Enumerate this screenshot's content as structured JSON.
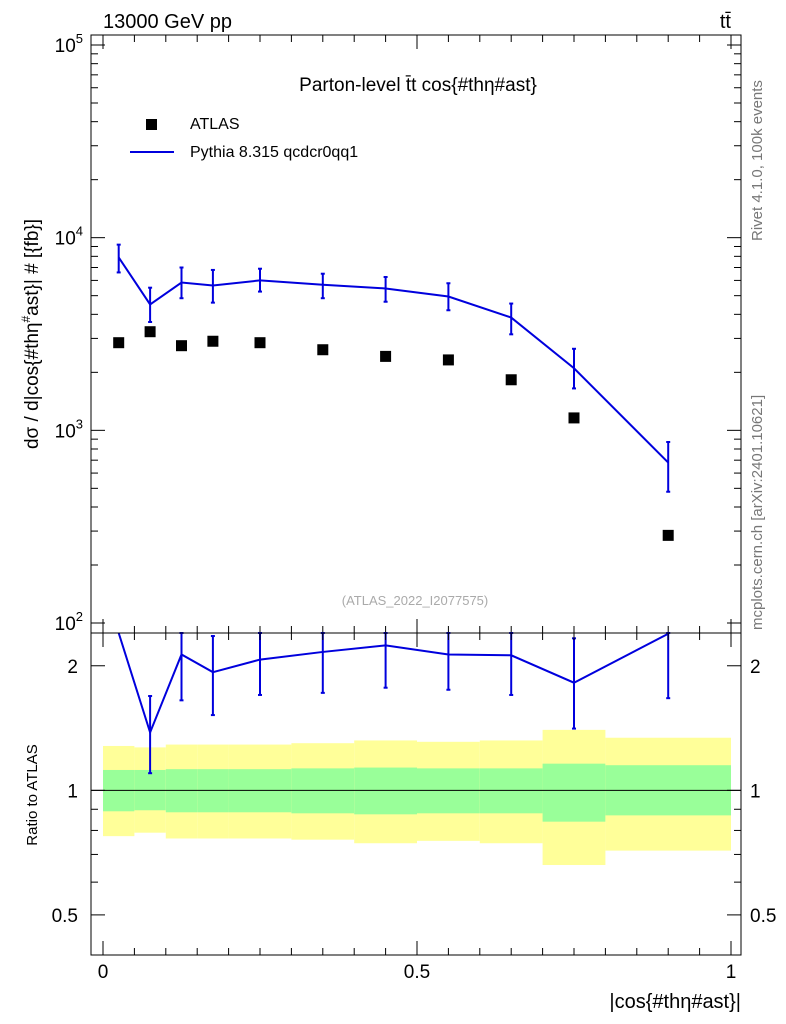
{
  "header": {
    "energy_label": "13000 GeV pp",
    "process_label": "tt̄"
  },
  "side_labels": {
    "rivet": "Rivet 4.1.0,  100k events",
    "source": "mcplots.cern.ch [arXiv:2401.10621]"
  },
  "colors": {
    "mc_line": "#0000dd",
    "data_marker": "#000000",
    "band_inner": "#99ff99",
    "band_outer": "#ffff99"
  },
  "chart_data": [
    {
      "type": "scatter",
      "title": "Parton-level t̄t cos{#thη#ast}",
      "analysis_id": "(ATLAS_2022_I2077575)",
      "ylabel_parts": [
        "dσ / d|cos{#thη",
        "#",
        "ast}| # [{fb}]"
      ],
      "yscale": "log",
      "ylim": [
        100,
        100000
      ],
      "xlim": [
        0,
        1
      ],
      "y_tick_labels": [
        {
          "value": 100,
          "base": "10",
          "exp": "2"
        },
        {
          "value": 1000,
          "base": "10",
          "exp": "3"
        },
        {
          "value": 10000,
          "base": "10",
          "exp": "4"
        },
        {
          "value": 100000,
          "base": "10",
          "exp": "5"
        }
      ],
      "legend": {
        "position": "top-left",
        "entries": [
          {
            "label": "ATLAS",
            "marker": "square"
          },
          {
            "label": "Pythia 8.315 qcdcr0qq1",
            "marker": "line"
          }
        ]
      },
      "series": [
        {
          "name": "ATLAS",
          "x": [
            0.025,
            0.075,
            0.125,
            0.175,
            0.25,
            0.35,
            0.45,
            0.55,
            0.65,
            0.75,
            0.9
          ],
          "values": [
            2850,
            3250,
            2750,
            2900,
            2850,
            2620,
            2420,
            2320,
            1830,
            1160,
            285
          ]
        },
        {
          "name": "Pythia 8.315 qcdcr0qq1",
          "x": [
            0.025,
            0.075,
            0.125,
            0.175,
            0.25,
            0.35,
            0.45,
            0.55,
            0.65,
            0.75,
            0.9
          ],
          "values": [
            7900,
            4500,
            5850,
            5650,
            6000,
            5700,
            5450,
            4950,
            3850,
            2100,
            680
          ],
          "err_low": [
            6600,
            3650,
            4850,
            4600,
            5250,
            4850,
            4650,
            4200,
            3150,
            1650,
            480
          ],
          "err_high": [
            9200,
            5500,
            7000,
            6800,
            6900,
            6500,
            6250,
            5800,
            4550,
            2650,
            870
          ]
        }
      ]
    },
    {
      "type": "line",
      "ylabel": "Ratio to ATLAS",
      "xlabel": "|cos{#thη#ast}|",
      "yscale": "log",
      "ylim": [
        0.4,
        2.4
      ],
      "xlim": [
        0,
        1
      ],
      "x_tick_labels": [
        "0",
        "0.5",
        "1"
      ],
      "y_tick_labels": [
        "0.5",
        "1",
        "2"
      ],
      "reference_line": 1,
      "bins": [
        [
          0,
          0.05
        ],
        [
          0.05,
          0.1
        ],
        [
          0.1,
          0.15
        ],
        [
          0.15,
          0.2
        ],
        [
          0.2,
          0.3
        ],
        [
          0.3,
          0.4
        ],
        [
          0.4,
          0.5
        ],
        [
          0.5,
          0.6
        ],
        [
          0.6,
          0.7
        ],
        [
          0.7,
          0.8
        ],
        [
          0.8,
          1.0
        ]
      ],
      "band_inner": {
        "low": [
          0.89,
          0.895,
          0.885,
          0.885,
          0.885,
          0.88,
          0.875,
          0.88,
          0.88,
          0.84,
          0.87
        ],
        "high": [
          1.12,
          1.12,
          1.125,
          1.125,
          1.125,
          1.13,
          1.135,
          1.13,
          1.13,
          1.16,
          1.15
        ]
      },
      "band_outer": {
        "low": [
          0.775,
          0.79,
          0.765,
          0.765,
          0.765,
          0.76,
          0.745,
          0.755,
          0.745,
          0.66,
          0.715
        ],
        "high": [
          1.28,
          1.27,
          1.29,
          1.29,
          1.29,
          1.3,
          1.32,
          1.31,
          1.32,
          1.4,
          1.34
        ]
      },
      "series": [
        {
          "name": "Pythia 8.315 qcdcr0qq1",
          "x": [
            0.025,
            0.075,
            0.125,
            0.175,
            0.25,
            0.35,
            0.45,
            0.55,
            0.65,
            0.75,
            0.9
          ],
          "values": [
            2.8,
            1.38,
            2.13,
            1.93,
            2.07,
            2.16,
            2.24,
            2.13,
            2.12,
            1.82,
            2.39
          ],
          "err_low": [
            2.8,
            1.1,
            1.65,
            1.52,
            1.7,
            1.72,
            1.77,
            1.75,
            1.7,
            1.41,
            1.67
          ],
          "err_high": [
            2.8,
            1.69,
            2.6,
            2.36,
            2.45,
            2.6,
            2.7,
            2.56,
            2.55,
            2.33,
            2.8
          ]
        }
      ]
    }
  ]
}
